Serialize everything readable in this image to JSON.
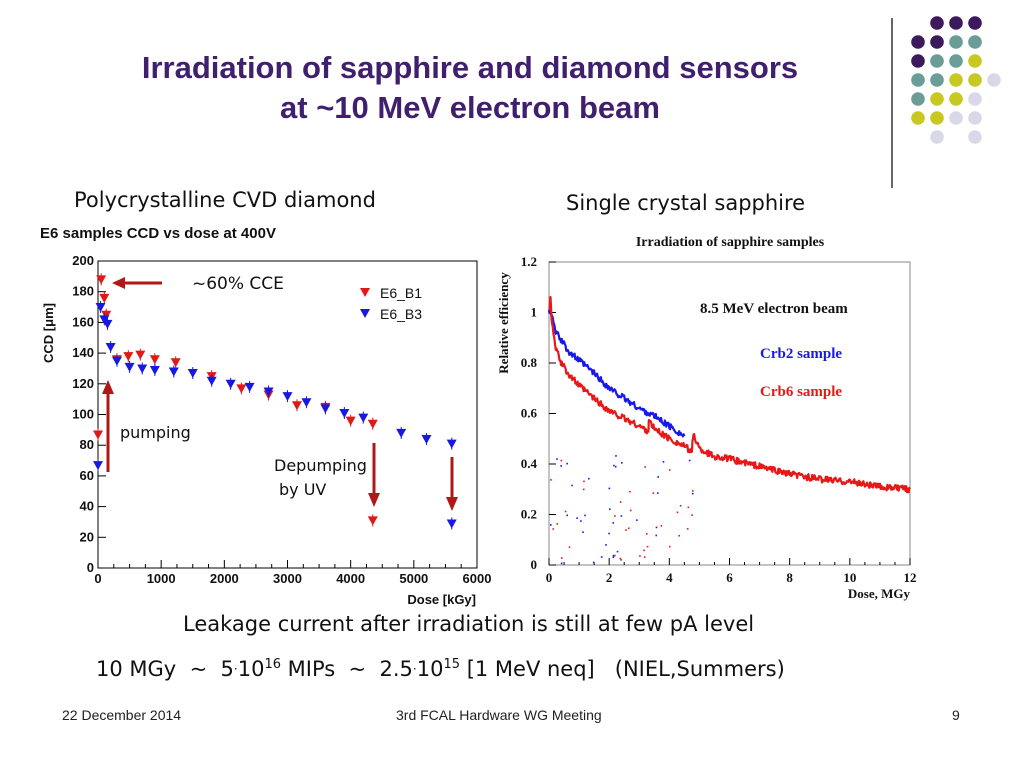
{
  "slide": {
    "title_line1": "Irradiation of sapphire and diamond sensors",
    "title_line2": "at ~10 MeV electron beam",
    "left_caption": "Polycrystalline CVD diamond",
    "right_caption": "Single crystal sapphire",
    "leakage_text": "Leakage current after irradiation is still at few pA level",
    "dose_eq": {
      "part1": "10 MGy  ~  5",
      "dot1": "·",
      "base1": "10",
      "exp1": "16",
      "part2": " MIPs  ~  2.5",
      "dot2": "·",
      "base2": "10",
      "exp2": "15",
      "part3": " [1 MeV neq]   (NIEL,Summers)"
    },
    "footer": {
      "date": "22 December 2014",
      "meeting": "3rd FCAL Hardware WG Meeting",
      "page": "9"
    },
    "colors": {
      "title": "#3f1f6e",
      "purple": "#3d1a5e",
      "teal": "#6a9c98",
      "olive": "#c8c822",
      "lavender": "#d8d8e8",
      "arrow": "#b01818"
    }
  },
  "chart_data": [
    {
      "type": "scatter",
      "title": "E6 samples CCD vs dose at 400V",
      "xlabel": "Dose [kGy]",
      "ylabel": "CCD [μm]",
      "xlim": [
        0,
        6000
      ],
      "ylim": [
        0,
        200
      ],
      "xticks": [
        0,
        1000,
        2000,
        3000,
        4000,
        5000,
        6000
      ],
      "yticks": [
        0,
        20,
        40,
        60,
        80,
        100,
        120,
        140,
        160,
        180,
        200
      ],
      "legend": [
        "E6_B1",
        "E6_B3"
      ],
      "legend_position": "top-right",
      "annotations": {
        "cce": "~60% CCE",
        "pumping": "pumping",
        "depumping_1": "Depumping",
        "depumping_2": "by UV"
      },
      "series": [
        {
          "name": "E6_B1",
          "color": "#e01818",
          "x": [
            0,
            50,
            100,
            130,
            300,
            480,
            670,
            900,
            1230,
            1800,
            2270,
            2700,
            3150,
            3600,
            4000,
            4350,
            4350
          ],
          "y": [
            87,
            188,
            176,
            165,
            136,
            138,
            139,
            136,
            134,
            125,
            117,
            113,
            106,
            105,
            96,
            94,
            31
          ]
        },
        {
          "name": "E6_B3",
          "color": "#1818e0",
          "x": [
            0,
            40,
            100,
            150,
            200,
            300,
            500,
            700,
            900,
            1200,
            1500,
            1800,
            2100,
            2400,
            2700,
            3000,
            3300,
            3600,
            3900,
            4200,
            4800,
            5200,
            5600,
            5600
          ],
          "y": [
            67,
            170,
            162,
            159,
            144,
            135,
            131,
            130,
            129,
            128,
            127,
            122,
            120,
            118,
            115,
            112,
            108,
            104,
            101,
            98,
            88,
            84,
            81,
            29
          ]
        }
      ]
    },
    {
      "type": "line",
      "title": "Irradiation of sapphire samples",
      "xlabel": "Dose, MGy",
      "ylabel": "Relative efficiency",
      "xlim": [
        0,
        12
      ],
      "ylim": [
        0,
        1.2
      ],
      "xticks": [
        0,
        2,
        4,
        6,
        8,
        10,
        12
      ],
      "yticks": [
        0,
        0.2,
        0.4,
        0.6,
        0.8,
        1,
        1.2
      ],
      "annotation": "8.5 MeV electron beam",
      "series": [
        {
          "name": "Crb2 sample",
          "color": "#1818e8",
          "x": [
            0,
            0.05,
            0.1,
            0.2,
            0.4,
            0.7,
            1.0,
            1.5,
            2.0,
            2.5,
            3.0,
            3.5,
            4.0,
            4.5
          ],
          "y": [
            1.0,
            1.02,
            0.98,
            0.93,
            0.89,
            0.84,
            0.81,
            0.76,
            0.7,
            0.66,
            0.62,
            0.59,
            0.55,
            0.51
          ]
        },
        {
          "name": "Crb6 sample",
          "color": "#e81818",
          "x": [
            0,
            0.05,
            0.1,
            0.2,
            0.4,
            0.7,
            1.0,
            1.5,
            2.0,
            2.5,
            3.0,
            3.3,
            3.32,
            3.5,
            4.0,
            4.5,
            4.75,
            4.8,
            5.0,
            5.5,
            6.0,
            7.0,
            8.0,
            9.0,
            10.0,
            11.0,
            12.0
          ],
          "y": [
            1.0,
            1.07,
            0.95,
            0.87,
            0.8,
            0.75,
            0.71,
            0.66,
            0.61,
            0.58,
            0.55,
            0.53,
            0.57,
            0.54,
            0.5,
            0.47,
            0.45,
            0.52,
            0.46,
            0.43,
            0.42,
            0.39,
            0.36,
            0.34,
            0.33,
            0.31,
            0.3
          ]
        }
      ]
    }
  ]
}
